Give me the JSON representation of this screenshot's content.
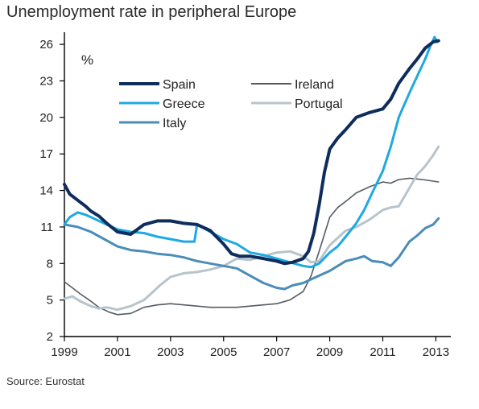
{
  "title": "Unemployment rate in peripheral Europe",
  "source": "Source: Eurostat",
  "chart_data": {
    "type": "line",
    "title": "Unemployment rate in peripheral Europe",
    "unit": "%",
    "xlabel": "",
    "ylabel": "",
    "xlim": [
      1999,
      2013.2
    ],
    "ylim": [
      2,
      27
    ],
    "x_ticks": [
      1999,
      2001,
      2003,
      2005,
      2007,
      2009,
      2011,
      2013
    ],
    "y_ticks": [
      2,
      5,
      8,
      11,
      14,
      17,
      20,
      23,
      26
    ],
    "grid": false,
    "legend_position": "top-left",
    "series": [
      {
        "name": "Spain",
        "color": "#0f2d5c",
        "width": 4,
        "x": [
          1999,
          1999.2,
          1999.5,
          1999.8,
          2000,
          2000.3,
          2000.6,
          2001,
          2001.5,
          2002,
          2002.5,
          2003,
          2003.5,
          2004,
          2004.5,
          2005,
          2005.3,
          2005.6,
          2006,
          2006.5,
          2007,
          2007.3,
          2007.6,
          2008,
          2008.2,
          2008.4,
          2008.6,
          2008.8,
          2009,
          2009.3,
          2009.6,
          2010,
          2010.5,
          2011,
          2011.3,
          2011.6,
          2012,
          2012.3,
          2012.6,
          2012.9,
          2013.1
        ],
        "values": [
          14.5,
          13.7,
          13.2,
          12.7,
          12.3,
          11.9,
          11.3,
          10.6,
          10.4,
          11.2,
          11.5,
          11.5,
          11.3,
          11.2,
          10.7,
          9.6,
          8.8,
          8.6,
          8.6,
          8.4,
          8.2,
          8.0,
          8.1,
          8.4,
          9.0,
          10.5,
          12.8,
          15.5,
          17.4,
          18.3,
          19.0,
          20.0,
          20.4,
          20.7,
          21.5,
          22.8,
          24.0,
          24.8,
          25.7,
          26.2,
          26.3
        ]
      },
      {
        "name": "Ireland",
        "color": "#545c62",
        "width": 1.6,
        "x": [
          1999,
          1999.3,
          1999.6,
          2000,
          2000.3,
          2000.7,
          2001,
          2001.5,
          2002,
          2002.5,
          2003,
          2003.5,
          2004,
          2004.5,
          2005,
          2005.5,
          2006,
          2006.5,
          2007,
          2007.5,
          2008,
          2008.3,
          2008.6,
          2009,
          2009.3,
          2009.6,
          2010,
          2010.5,
          2011,
          2011.3,
          2011.6,
          2012,
          2012.5,
          2013.1
        ],
        "values": [
          6.5,
          6.0,
          5.5,
          4.9,
          4.4,
          4.0,
          3.8,
          3.9,
          4.4,
          4.6,
          4.7,
          4.6,
          4.5,
          4.4,
          4.4,
          4.4,
          4.5,
          4.6,
          4.7,
          5.0,
          5.7,
          7.0,
          9.0,
          11.8,
          12.6,
          13.1,
          13.8,
          14.3,
          14.7,
          14.6,
          14.9,
          15.0,
          14.9,
          14.7
        ]
      },
      {
        "name": "Greece",
        "color": "#1fa9e2",
        "width": 3,
        "x": [
          1999,
          1999.2,
          1999.5,
          1999.8,
          2000,
          2000.3,
          2000.6,
          2001,
          2001.5,
          2002,
          2002.5,
          2003,
          2003.5,
          2003.9,
          2004,
          2004.5,
          2005,
          2005.5,
          2006,
          2006.5,
          2007,
          2007.5,
          2008,
          2008.3,
          2008.6,
          2009,
          2009.3,
          2009.6,
          2010,
          2010.3,
          2010.6,
          2011,
          2011.3,
          2011.6,
          2012,
          2012.3,
          2012.6,
          2012.8,
          2012.95,
          2013.05
        ],
        "values": [
          11.2,
          11.8,
          12.2,
          12.0,
          11.8,
          11.5,
          11.2,
          10.8,
          10.6,
          10.5,
          10.2,
          10.0,
          9.8,
          9.8,
          11.2,
          10.6,
          10.0,
          9.6,
          8.9,
          8.7,
          8.4,
          8.1,
          7.8,
          7.7,
          8.0,
          8.9,
          9.4,
          10.2,
          11.3,
          12.4,
          13.8,
          15.6,
          17.6,
          20.0,
          22.0,
          23.4,
          24.8,
          25.9,
          26.6,
          26.2
        ]
      },
      {
        "name": "Portugal",
        "color": "#b8c4cb",
        "width": 3,
        "x": [
          1999,
          1999.3,
          1999.6,
          2000,
          2000.3,
          2000.6,
          2001,
          2001.5,
          2002,
          2002.3,
          2002.6,
          2003,
          2003.5,
          2004,
          2004.5,
          2005,
          2005.5,
          2006,
          2006.5,
          2007,
          2007.5,
          2008,
          2008.3,
          2008.6,
          2009,
          2009.3,
          2009.6,
          2010,
          2010.5,
          2011,
          2011.3,
          2011.6,
          2012,
          2012.3,
          2012.6,
          2012.9,
          2013.1
        ],
        "values": [
          5.1,
          5.3,
          4.9,
          4.5,
          4.3,
          4.4,
          4.2,
          4.5,
          5.0,
          5.6,
          6.2,
          6.9,
          7.2,
          7.3,
          7.5,
          7.8,
          8.4,
          8.3,
          8.6,
          8.9,
          9.0,
          8.6,
          8.1,
          8.2,
          9.5,
          10.1,
          10.7,
          11.0,
          11.6,
          12.4,
          12.6,
          12.7,
          14.2,
          15.3,
          16.0,
          16.9,
          17.6
        ]
      },
      {
        "name": "Italy",
        "color": "#4a8db8",
        "width": 3,
        "x": [
          1999,
          1999.5,
          2000,
          2000.5,
          2001,
          2001.5,
          2002,
          2002.5,
          2003,
          2003.5,
          2004,
          2004.5,
          2005,
          2005.5,
          2006,
          2006.5,
          2007,
          2007.3,
          2007.6,
          2008,
          2008.3,
          2008.6,
          2009,
          2009.3,
          2009.6,
          2010,
          2010.3,
          2010.6,
          2011,
          2011.3,
          2011.6,
          2012,
          2012.3,
          2012.6,
          2012.9,
          2013.1
        ],
        "values": [
          11.2,
          11.0,
          10.6,
          10.0,
          9.4,
          9.1,
          9.0,
          8.8,
          8.7,
          8.5,
          8.2,
          8.0,
          7.8,
          7.6,
          7.0,
          6.4,
          6.0,
          5.9,
          6.2,
          6.4,
          6.7,
          7.0,
          7.4,
          7.8,
          8.2,
          8.4,
          8.6,
          8.2,
          8.1,
          7.8,
          8.5,
          9.8,
          10.3,
          10.9,
          11.2,
          11.7
        ]
      }
    ]
  }
}
